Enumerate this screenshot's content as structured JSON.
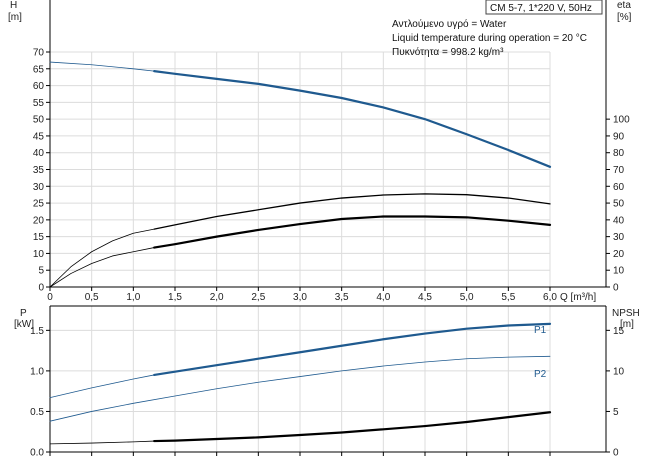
{
  "chart_data": [
    {
      "type": "line",
      "title": "CM 5-7, 1*220 V, 50Hz",
      "info_lines": [
        "Αντλούμενο υγρό = Water",
        "Liquid temperature during operation = 20 °C",
        "Πυκνότητα = 998.2 kg/m³"
      ],
      "xlabel": "Q [m³/h]",
      "x_ticks": [
        "0",
        "0,5",
        "1,0",
        "1,5",
        "2,0",
        "2,5",
        "3,0",
        "3,5",
        "4,0",
        "4,5",
        "5,0",
        "5,5",
        "6,0"
      ],
      "xlim": [
        0,
        6.0
      ],
      "y_left": {
        "label_top": "H",
        "unit": "[m]",
        "ticks": [
          "0",
          "5",
          "10",
          "15",
          "20",
          "25",
          "30",
          "35",
          "40",
          "45",
          "50",
          "55",
          "60",
          "65",
          "70"
        ],
        "ylim": [
          0,
          70
        ]
      },
      "y_right": {
        "label_top": "eta",
        "unit": "[%]",
        "ticks": [
          "0",
          "10",
          "20",
          "30",
          "40",
          "50",
          "60",
          "70",
          "80",
          "90",
          "100"
        ],
        "ylim": [
          0,
          140
        ]
      },
      "grid": true,
      "series": [
        {
          "color": "#1f5a8f",
          "axis": "left",
          "segments": [
            {
              "style": "thin",
              "x": [
                0,
                0.5,
                1.0,
                1.25
              ],
              "y": [
                67,
                66.2,
                65,
                64.3
              ]
            },
            {
              "style": "thick",
              "x": [
                1.25,
                1.5,
                2.0,
                2.5,
                3.0,
                3.5,
                4.0,
                4.5,
                5.0,
                5.5,
                6.0
              ],
              "y": [
                64.3,
                63.5,
                62,
                60.5,
                58.5,
                56.3,
                53.5,
                50.0,
                45.5,
                40.8,
                35.8
              ]
            }
          ]
        },
        {
          "color": "#000000",
          "axis": "right",
          "segments": [
            {
              "style": "thin",
              "x": [
                0,
                0.25,
                0.5,
                0.75,
                1.0,
                1.25
              ],
              "y": [
                0,
                12,
                21,
                27.5,
                32,
                34.5
              ]
            },
            {
              "style": "medium",
              "x": [
                1.25,
                1.5,
                2.0,
                2.5,
                3.0,
                3.5,
                4.0,
                4.5,
                5.0,
                5.5,
                6.0
              ],
              "y": [
                34.5,
                37,
                42,
                46,
                50,
                53,
                54.8,
                55.5,
                55,
                53,
                49.5
              ]
            }
          ]
        },
        {
          "color": "#000000",
          "axis": "right",
          "segments": [
            {
              "style": "thin",
              "x": [
                0,
                0.25,
                0.5,
                0.75,
                1.0,
                1.25
              ],
              "y": [
                0,
                8,
                14,
                18.5,
                21,
                23.5
              ]
            },
            {
              "style": "thick",
              "x": [
                1.25,
                1.5,
                2.0,
                2.5,
                3.0,
                3.5,
                4.0,
                4.5,
                5.0,
                5.5,
                6.0
              ],
              "y": [
                23.5,
                25.5,
                30,
                34,
                37.5,
                40.5,
                42,
                42,
                41.5,
                39.5,
                37
              ]
            }
          ]
        }
      ]
    },
    {
      "type": "line",
      "xlim": [
        0,
        6.0
      ],
      "y_left": {
        "label_top": "P",
        "unit": "[kW]",
        "ticks": [
          "0.0",
          "0.5",
          "1.0",
          "1.5"
        ],
        "ylim": [
          0,
          1.8
        ]
      },
      "y_right": {
        "label_top": "NPSH",
        "unit": "[m]",
        "ticks": [
          "0",
          "5",
          "10",
          "15"
        ],
        "ylim": [
          0,
          18
        ]
      },
      "grid": true,
      "series": [
        {
          "name": "P1",
          "color": "#1f5a8f",
          "axis": "left",
          "segments": [
            {
              "style": "thin",
              "x": [
                0,
                0.5,
                1.0,
                1.25
              ],
              "y": [
                0.67,
                0.79,
                0.9,
                0.95
              ]
            },
            {
              "style": "thick",
              "x": [
                1.25,
                1.5,
                2.0,
                2.5,
                3.0,
                3.5,
                4.0,
                4.5,
                5.0,
                5.5,
                6.0
              ],
              "y": [
                0.95,
                0.99,
                1.07,
                1.15,
                1.23,
                1.31,
                1.39,
                1.46,
                1.52,
                1.56,
                1.58
              ]
            }
          ]
        },
        {
          "name": "P2",
          "color": "#1f5a8f",
          "axis": "left",
          "segments": [
            {
              "style": "thin",
              "x": [
                0,
                0.5,
                1.0,
                1.5,
                2.0,
                2.5,
                3.0,
                3.5,
                4.0,
                4.5,
                5.0,
                5.5,
                6.0
              ],
              "y": [
                0.38,
                0.5,
                0.6,
                0.69,
                0.78,
                0.86,
                0.93,
                1.0,
                1.06,
                1.11,
                1.15,
                1.17,
                1.18
              ]
            }
          ]
        },
        {
          "color": "#000000",
          "axis": "right",
          "segments": [
            {
              "style": "thin",
              "x": [
                0,
                0.5,
                1.0,
                1.25
              ],
              "y": [
                1.0,
                1.1,
                1.25,
                1.35
              ]
            },
            {
              "style": "thick",
              "x": [
                1.25,
                1.5,
                2.0,
                2.5,
                3.0,
                3.5,
                4.0,
                4.5,
                5.0,
                5.5,
                6.0
              ],
              "y": [
                1.35,
                1.4,
                1.6,
                1.8,
                2.1,
                2.4,
                2.8,
                3.2,
                3.7,
                4.3,
                4.9
              ]
            }
          ]
        }
      ]
    }
  ]
}
